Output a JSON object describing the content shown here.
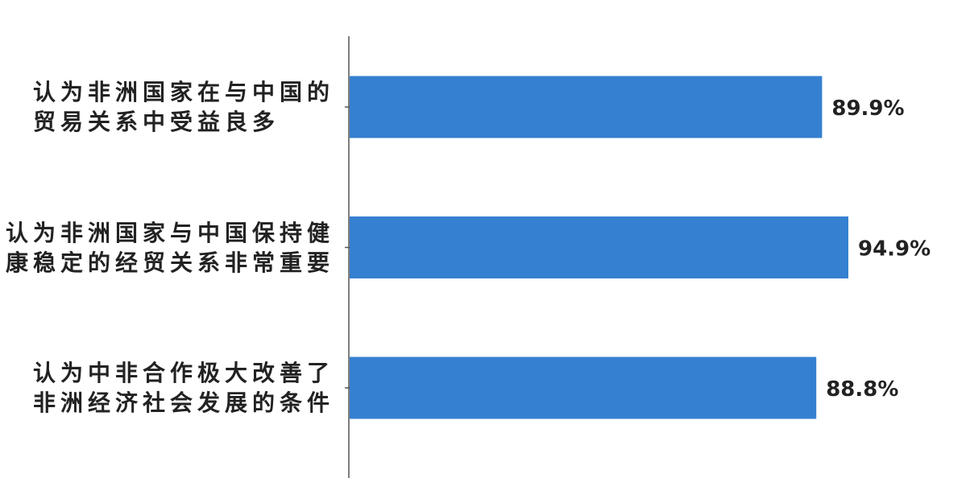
{
  "chart_data": {
    "type": "bar",
    "orientation": "horizontal",
    "categories": [
      [
        "认为非洲国家在与中国的",
        "贸易关系中受益良多"
      ],
      [
        "认为非洲国家与中国保持健",
        "康稳定的经贸关系非常重要"
      ],
      [
        "认为中非合作极大改善了",
        "非洲经济社会发展的条件"
      ]
    ],
    "values": [
      89.9,
      94.9,
      88.8
    ],
    "data_labels": [
      "89.9%",
      "94.9%",
      "88.8%"
    ],
    "xlim": [
      0,
      100
    ],
    "grid": false,
    "bar_color": "#3580d0",
    "axis_color": "#555555",
    "label_color": "#222222"
  }
}
